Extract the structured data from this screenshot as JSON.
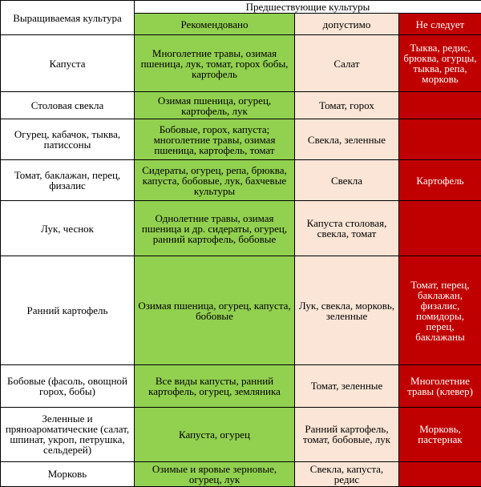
{
  "header": {
    "crop": "Выращиваемая культура",
    "previous": "Предшествующие культуры",
    "recommended": "Рекомендовано",
    "acceptable": "допустимо",
    "not_recommended": "Не следует"
  },
  "colors": {
    "recommended": "#92d050",
    "acceptable": "#fbe5d6",
    "not_recommended": "#c00000"
  },
  "rows": [
    {
      "crop": "Капуста",
      "recommended": "Многолетние травы, озимая пшеница, лук, томат, горох бобы, картофель",
      "acceptable": "Салат",
      "not_recommended": "Тыква, редис, брюква, огурцы, тыква, репа, морковь"
    },
    {
      "crop": "Столовая свекла",
      "recommended": "Озимая пшеница, огурец, картофель, лук",
      "acceptable": "Томат, горох",
      "not_recommended": ""
    },
    {
      "crop": "Огурец, кабачок, тыква, патиссоны",
      "recommended": "Бобовые, горох, капуста; многолетние травы, озимая пшеница, картофель, томат",
      "acceptable": "Свекла, зеленные",
      "not_recommended": ""
    },
    {
      "crop": "Томат, баклажан, перец, физалис",
      "recommended": "Сидераты, огурец, репа, брюква, капуста, бобовые, лук, бахчевые культуры",
      "acceptable": "Свекла",
      "not_recommended": "Картофель"
    },
    {
      "crop": "Лук, чеснок",
      "recommended": "Однолетние травы, озимая пшеница и др. сидераты, огурец, ранний картофель, бобовые",
      "acceptable": "Капуста столовая, свекла, томат",
      "not_recommended": ""
    },
    {
      "crop": "Ранний картофель",
      "recommended": "Озимая пшеница, огурец, капуста, бобовые",
      "acceptable": "Лук, свекла, морковь, зеленные",
      "not_recommended": "Томат, перец, баклажан, физалис, помидоры, перец, баклажаны"
    },
    {
      "crop": "Бобовые (фасоль, овощной горох, бобы)",
      "recommended": "Все виды капусты, ранний картофель, огурец, земляника",
      "acceptable": "Томат, зеленные",
      "not_recommended": "Многолетние травы (клевер)"
    },
    {
      "crop": "Зеленные и пряноароматические (салат, шпинат, укроп, петрушка, сельдерей)",
      "recommended": "Капуста, огурец",
      "acceptable": "Ранний картофель, томат, бобовые, лук",
      "not_recommended": "Морковь, пастернак"
    },
    {
      "crop": "Морковь",
      "recommended": "Озимые и яровые зерновые, огурец, лук",
      "acceptable": "Свекла, капуста, редис",
      "not_recommended": ""
    }
  ]
}
